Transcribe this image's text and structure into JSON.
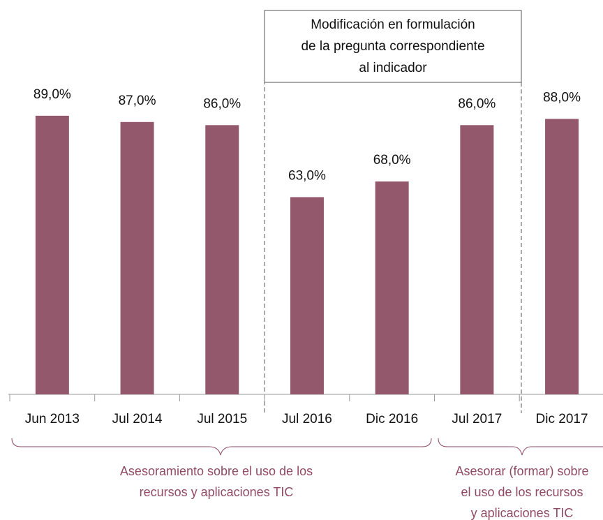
{
  "chart_data": {
    "type": "bar",
    "categories": [
      "Jun 2013",
      "Jul 2014",
      "Jul 2015",
      "Jul 2016",
      "Dic 2016",
      "Jul 2017",
      "Dic 2017"
    ],
    "values": [
      89,
      87,
      86,
      63,
      68,
      86,
      88
    ],
    "value_labels": [
      "89,0%",
      "87,0%",
      "86,0%",
      "63,0%",
      "68,0%",
      "86,0%",
      "88,0%"
    ],
    "color": "#93586c",
    "annotations": {
      "box": [
        "Modificación en formulación",
        "de la pregunta correspondiente",
        "al indicador"
      ],
      "groups": [
        [
          "Asesoramiento sobre el uso de los",
          "recursos y aplicaciones TIC"
        ],
        [
          "Asesorar (formar) sobre",
          "el uso de los recursos",
          "y aplicaciones TIC"
        ]
      ]
    }
  }
}
